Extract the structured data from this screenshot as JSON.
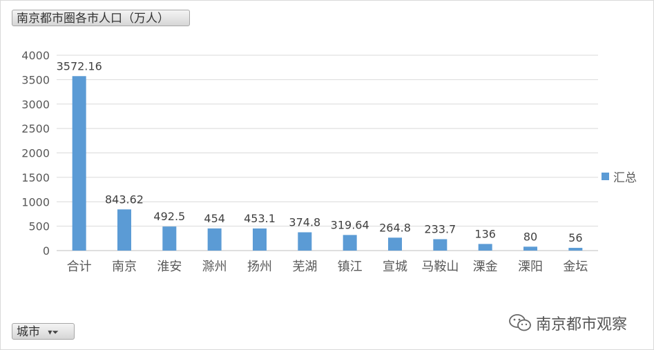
{
  "title_button": {
    "label": "南京都市圈各市人口（万人）"
  },
  "axis_field_button": {
    "label": "城市"
  },
  "legend": {
    "label": "汇总",
    "color": "#5b9bd5"
  },
  "watermark": {
    "text": "南京都市观察",
    "icon": "wechat-icon"
  },
  "chart_data": {
    "type": "bar",
    "title": "南京都市圈各市人口（万人）",
    "categories": [
      "合计",
      "南京",
      "淮安",
      "滁州",
      "扬州",
      "芜湖",
      "镇江",
      "宣城",
      "马鞍山",
      "溧金",
      "溧阳",
      "金坛"
    ],
    "series": [
      {
        "name": "汇总",
        "values": [
          3572.16,
          843.62,
          492.5,
          454,
          453.1,
          374.8,
          319.64,
          264.8,
          233.7,
          136,
          80,
          56
        ],
        "labels": [
          "3572.16",
          "843.62",
          "492.5",
          "454",
          "453.1",
          "374.8",
          "319.64",
          "264.8",
          "233.7",
          "136",
          "80",
          "56"
        ],
        "color": "#5b9bd5"
      }
    ],
    "ylim": [
      0,
      4000
    ],
    "yticks": [
      0,
      500,
      1000,
      1500,
      2000,
      2500,
      3000,
      3500,
      4000
    ],
    "grid": true,
    "legend_position": "right",
    "xlabel": "",
    "ylabel": ""
  }
}
